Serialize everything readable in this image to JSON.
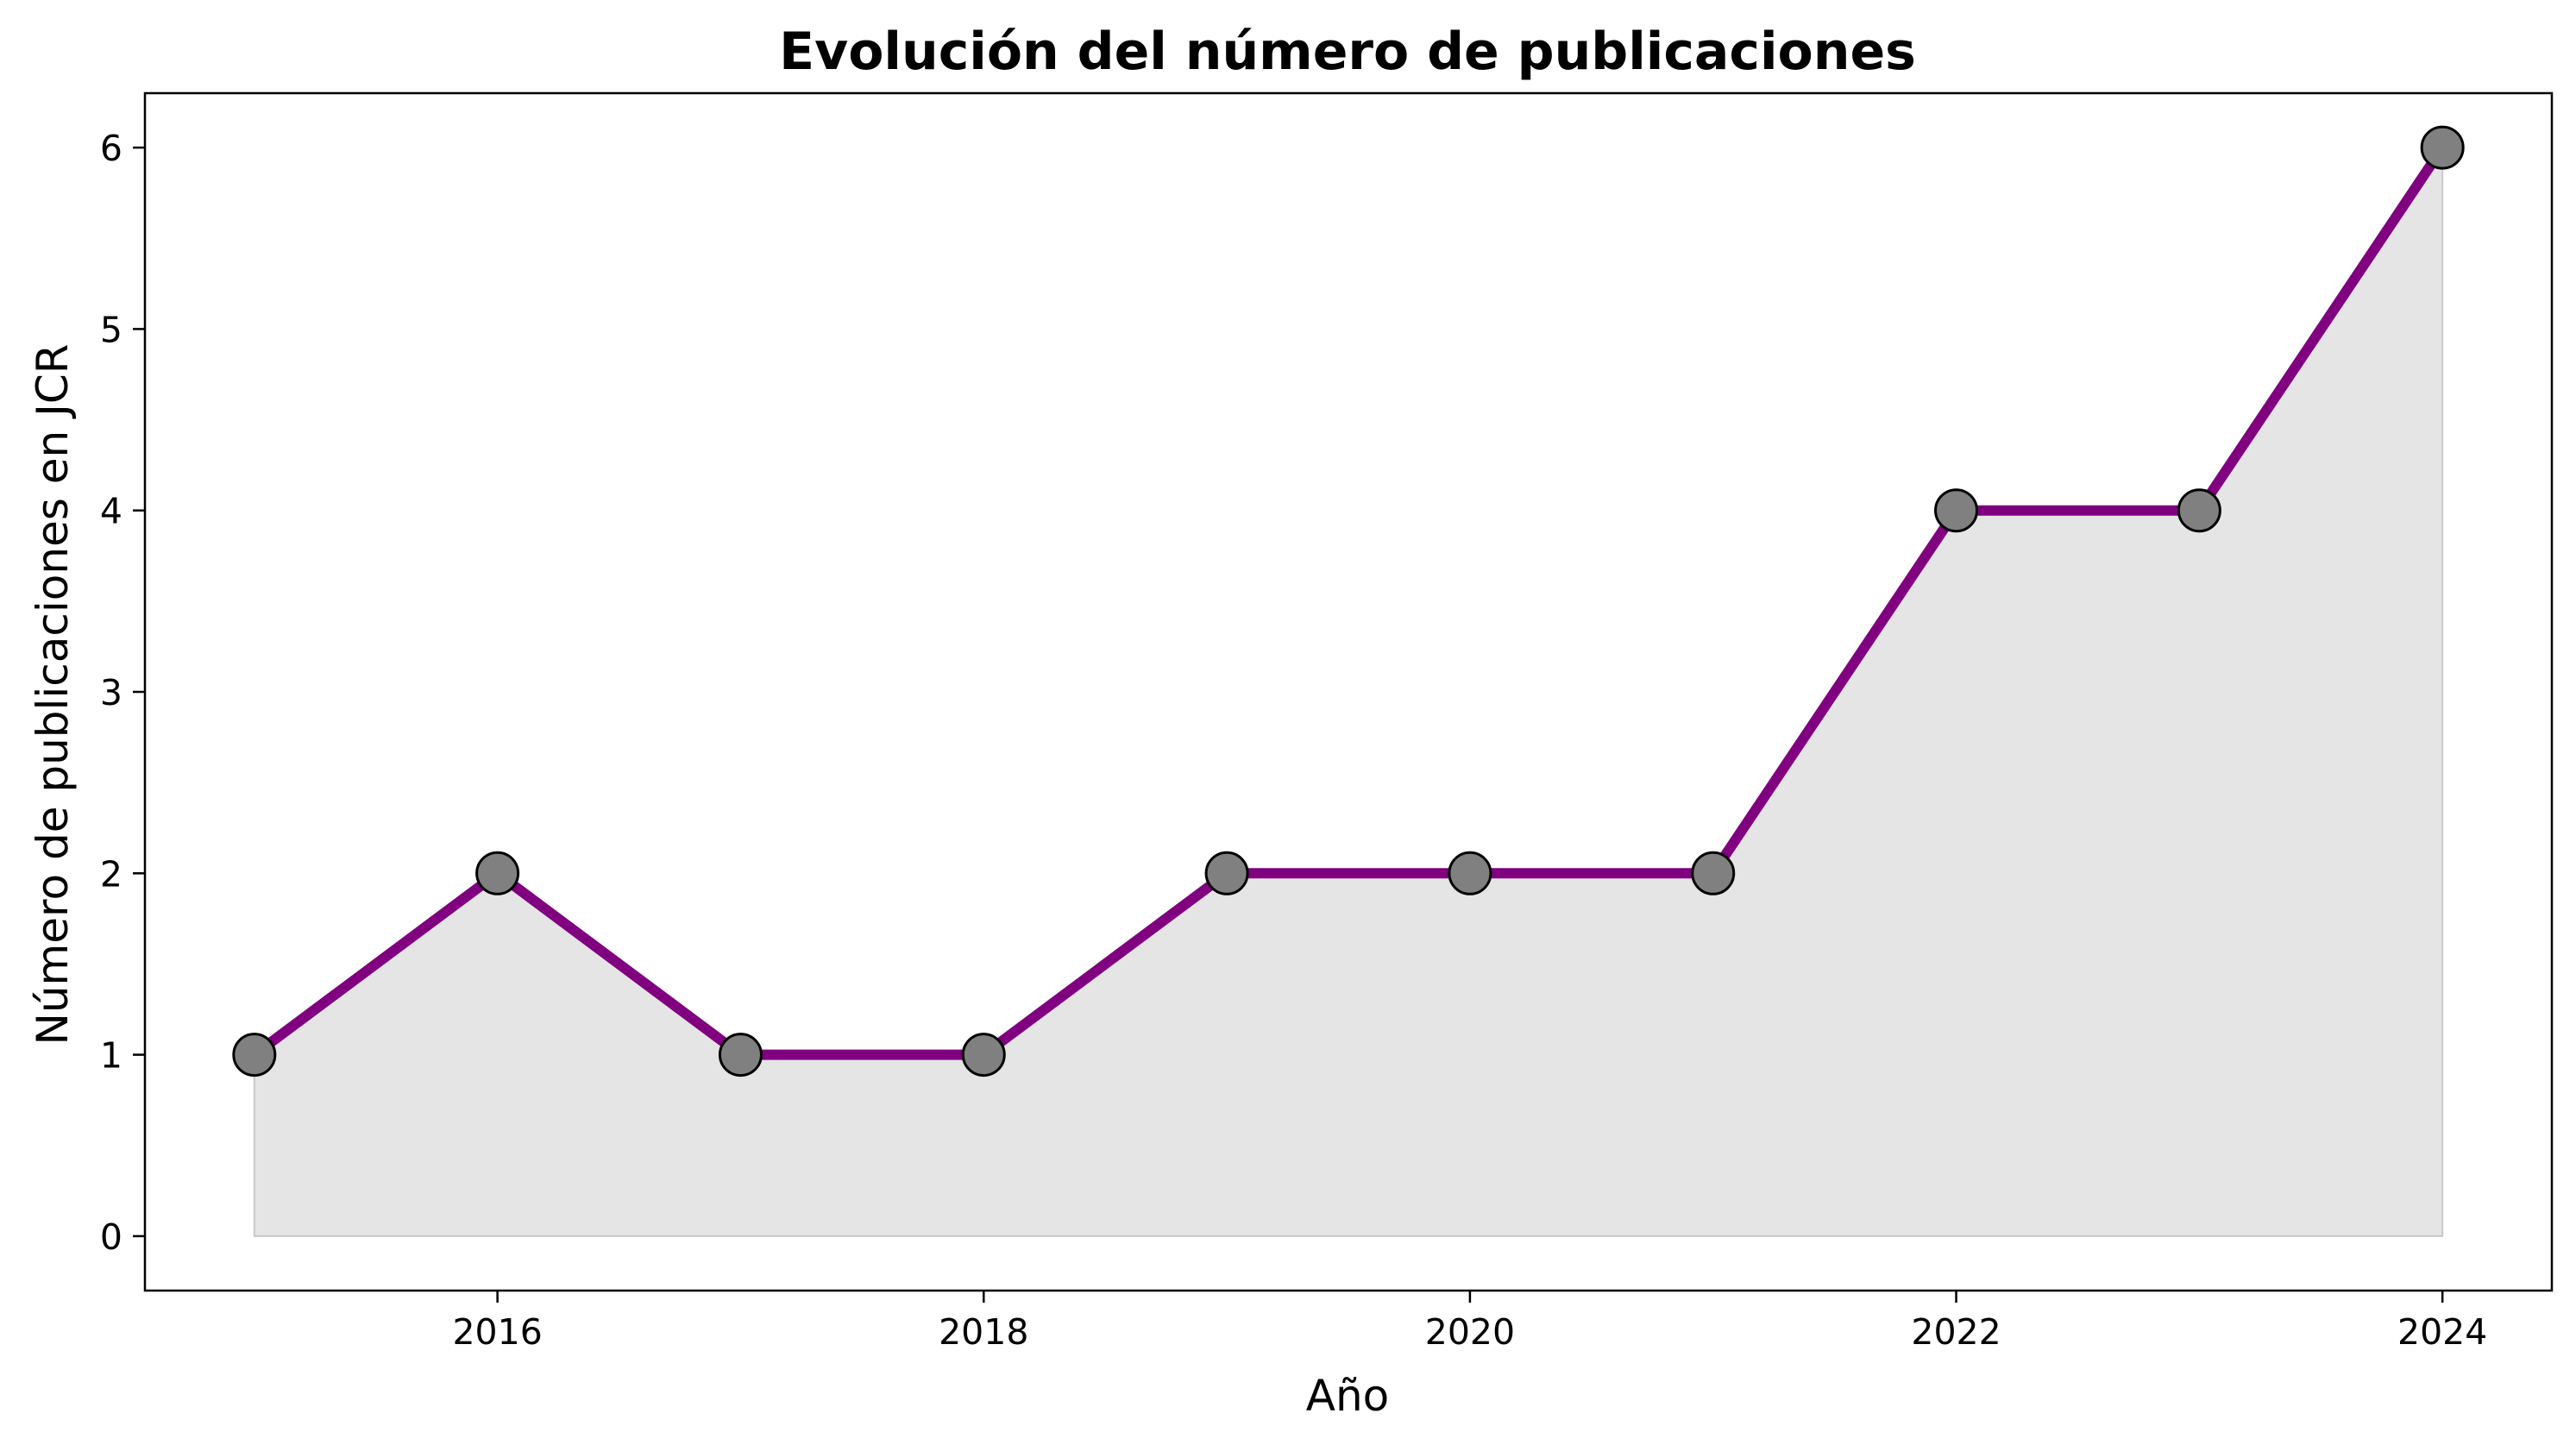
{
  "chart_data": {
    "type": "line",
    "title": "Evolución del número de publicaciones",
    "xlabel": "Año",
    "ylabel": "Número de publicaciones en JCR",
    "x": [
      2015,
      2016,
      2017,
      2018,
      2019,
      2020,
      2021,
      2022,
      2023,
      2024
    ],
    "series": [
      {
        "values": [
          1,
          2,
          1,
          1,
          2,
          2,
          2,
          4,
          4,
          6
        ]
      }
    ],
    "xticks": [
      "2016",
      "2018",
      "2020",
      "2022",
      "2024"
    ],
    "yticks": [
      "0",
      "1",
      "2",
      "3",
      "4",
      "5",
      "6"
    ],
    "xlim": [
      2014.55,
      2024.45
    ],
    "ylim": [
      -0.3,
      6.3
    ],
    "grid": false,
    "area_fill": true,
    "colors": {
      "line": "#800080",
      "marker_fill": "#808080",
      "marker_edge": "#000000",
      "area": "#e5e5e5"
    }
  }
}
